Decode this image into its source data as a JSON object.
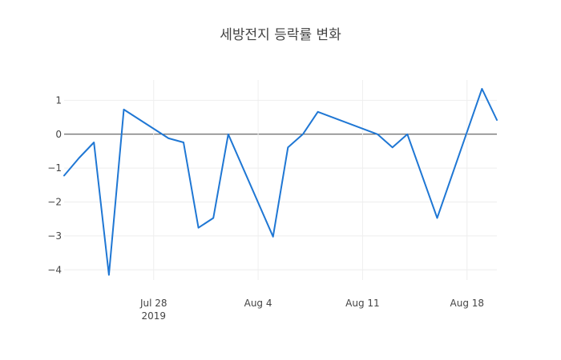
{
  "chart_data": {
    "type": "line",
    "title": "세방전지 등락률 변화",
    "xlabel": "",
    "ylabel": "",
    "x_axis": {
      "type": "date",
      "range": [
        "2019-07-22",
        "2019-08-20"
      ],
      "ticks": [
        {
          "date": "2019-07-28",
          "label": "Jul 28",
          "sublabel": "2019"
        },
        {
          "date": "2019-08-04",
          "label": "Aug 4",
          "sublabel": ""
        },
        {
          "date": "2019-08-11",
          "label": "Aug 11",
          "sublabel": ""
        },
        {
          "date": "2019-08-18",
          "label": "Aug 18",
          "sublabel": ""
        }
      ]
    },
    "y_axis": {
      "range": [
        -4.3,
        1.6
      ],
      "ticks": [
        {
          "value": 1,
          "label": "1"
        },
        {
          "value": 0,
          "label": "0"
        },
        {
          "value": -1,
          "label": "−1"
        },
        {
          "value": -2,
          "label": "−2"
        },
        {
          "value": -3,
          "label": "−3"
        },
        {
          "value": -4,
          "label": "−4"
        }
      ]
    },
    "grid": true,
    "zero_line": true,
    "series": [
      {
        "color": "#1f77d4",
        "points": [
          {
            "x": "2019-07-22",
            "y": -1.22
          },
          {
            "x": "2019-07-23",
            "y": -0.7
          },
          {
            "x": "2019-07-24",
            "y": -0.24
          },
          {
            "x": "2019-07-25",
            "y": -4.15
          },
          {
            "x": "2019-07-26",
            "y": 0.73
          },
          {
            "x": "2019-07-29",
            "y": -0.12
          },
          {
            "x": "2019-07-30",
            "y": -0.24
          },
          {
            "x": "2019-07-31",
            "y": -2.76
          },
          {
            "x": "2019-08-01",
            "y": -2.47
          },
          {
            "x": "2019-08-02",
            "y": 0.0
          },
          {
            "x": "2019-08-05",
            "y": -3.02
          },
          {
            "x": "2019-08-06",
            "y": -0.39
          },
          {
            "x": "2019-08-07",
            "y": 0.0
          },
          {
            "x": "2019-08-08",
            "y": 0.66
          },
          {
            "x": "2019-08-12",
            "y": 0.0
          },
          {
            "x": "2019-08-13",
            "y": -0.39
          },
          {
            "x": "2019-08-14",
            "y": 0.0
          },
          {
            "x": "2019-08-16",
            "y": -2.47
          },
          {
            "x": "2019-08-19",
            "y": 1.34
          },
          {
            "x": "2019-08-20",
            "y": 0.42
          }
        ]
      }
    ]
  }
}
